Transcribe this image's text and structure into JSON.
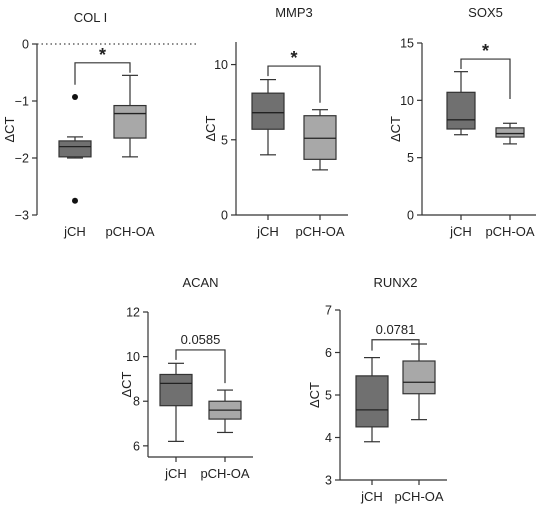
{
  "chart_data": [
    {
      "type": "box",
      "title": "COL I",
      "ylabel": "ΔCT",
      "ylim": [
        -3,
        0
      ],
      "yticks": [
        0,
        -1,
        -2,
        -3
      ],
      "reference_line": 0,
      "categories": [
        "jCH",
        "pCH-OA"
      ],
      "boxes": [
        {
          "name": "jCH",
          "min": -2.0,
          "q1": -1.98,
          "median": -1.8,
          "q3": -1.7,
          "max": -1.63,
          "outliers": [
            -0.93,
            -2.75
          ],
          "color": "#707070"
        },
        {
          "name": "pCH-OA",
          "min": -1.98,
          "q1": -1.65,
          "median": -1.22,
          "q3": -1.08,
          "max": -0.55,
          "outliers": [],
          "color": "#a8a8a8"
        }
      ],
      "comparison": {
        "label": "*",
        "y": -0.33
      }
    },
    {
      "type": "box",
      "title": "MMP3",
      "ylabel": "ΔCT",
      "ylim": [
        0,
        11.5
      ],
      "yticks": [
        0,
        5,
        10
      ],
      "categories": [
        "jCH",
        "pCH-OA"
      ],
      "boxes": [
        {
          "name": "jCH",
          "min": 4.0,
          "q1": 5.7,
          "median": 6.8,
          "q3": 8.1,
          "max": 9.0,
          "outliers": [],
          "color": "#707070"
        },
        {
          "name": "pCH-OA",
          "min": 3.0,
          "q1": 3.7,
          "median": 5.1,
          "q3": 6.6,
          "max": 7.0,
          "outliers": [],
          "color": "#a8a8a8"
        }
      ],
      "comparison": {
        "label": "*",
        "y": 9.9
      }
    },
    {
      "type": "box",
      "title": "SOX5",
      "ylabel": "ΔCT",
      "ylim": [
        0,
        15
      ],
      "yticks": [
        0,
        5,
        10,
        15
      ],
      "categories": [
        "jCH",
        "pCH-OA"
      ],
      "boxes": [
        {
          "name": "jCH",
          "min": 7.0,
          "q1": 7.5,
          "median": 8.3,
          "q3": 10.7,
          "max": 12.5,
          "outliers": [],
          "color": "#707070"
        },
        {
          "name": "pCH-OA",
          "min": 6.2,
          "q1": 6.8,
          "median": 7.1,
          "q3": 7.6,
          "max": 8.0,
          "outliers": [],
          "color": "#a8a8a8"
        }
      ],
      "comparison": {
        "label": "*",
        "y": 13.6
      }
    },
    {
      "type": "box",
      "title": "ACAN",
      "ylabel": "ΔCT",
      "ylim": [
        5.5,
        12
      ],
      "yticks": [
        6,
        8,
        10,
        12
      ],
      "categories": [
        "jCH",
        "pCH-OA"
      ],
      "boxes": [
        {
          "name": "jCH",
          "min": 6.2,
          "q1": 7.8,
          "median": 8.8,
          "q3": 9.2,
          "max": 9.7,
          "outliers": [],
          "color": "#707070"
        },
        {
          "name": "pCH-OA",
          "min": 6.6,
          "q1": 7.2,
          "median": 7.6,
          "q3": 8.0,
          "max": 8.5,
          "outliers": [],
          "color": "#a8a8a8"
        }
      ],
      "comparison": {
        "label": "0.0585",
        "y": 10.3
      }
    },
    {
      "type": "box",
      "title": "RUNX2",
      "ylabel": "ΔCT",
      "ylim": [
        3,
        7
      ],
      "yticks": [
        3,
        4,
        5,
        6,
        7
      ],
      "categories": [
        "jCH",
        "pCH-OA"
      ],
      "boxes": [
        {
          "name": "jCH",
          "min": 3.9,
          "q1": 4.25,
          "median": 4.65,
          "q3": 5.45,
          "max": 5.88,
          "outliers": [],
          "color": "#707070"
        },
        {
          "name": "pCH-OA",
          "min": 4.42,
          "q1": 5.03,
          "median": 5.3,
          "q3": 5.8,
          "max": 6.2,
          "outliers": [],
          "color": "#a8a8a8"
        }
      ],
      "comparison": {
        "label": "0.0781",
        "y": 6.3
      }
    }
  ]
}
